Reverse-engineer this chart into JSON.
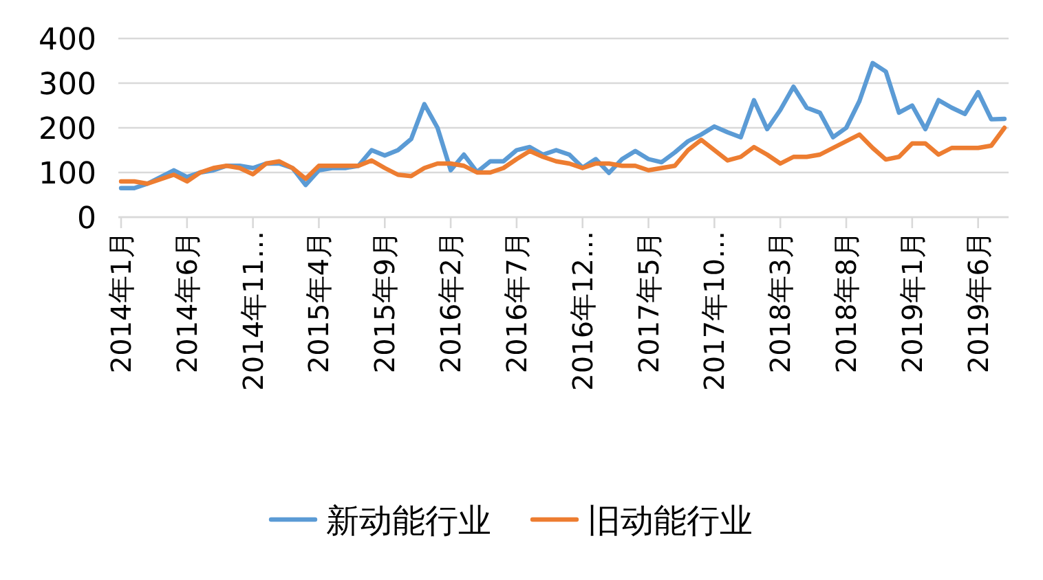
{
  "chart_data": {
    "type": "line",
    "categories": [
      "2014年1月",
      null,
      null,
      null,
      null,
      "2014年6月",
      null,
      null,
      null,
      null,
      "2014年11…",
      null,
      null,
      null,
      null,
      "2015年4月",
      null,
      null,
      null,
      null,
      "2015年9月",
      null,
      null,
      null,
      null,
      "2016年2月",
      null,
      null,
      null,
      null,
      "2016年7月",
      null,
      null,
      null,
      null,
      "2016年12…",
      null,
      null,
      null,
      null,
      "2017年5月",
      null,
      null,
      null,
      null,
      "2017年10…",
      null,
      null,
      null,
      null,
      "2018年3月",
      null,
      null,
      null,
      null,
      "2018年8月",
      null,
      null,
      null,
      null,
      "2019年1月",
      null,
      null,
      null,
      null,
      "2019年6月",
      null,
      null
    ],
    "series": [
      {
        "name": "新动能行业",
        "color": "#5b9bd5",
        "values": [
          65,
          65,
          75,
          90,
          105,
          90,
          100,
          105,
          115,
          115,
          110,
          120,
          120,
          110,
          72,
          105,
          110,
          110,
          115,
          150,
          138,
          150,
          175,
          253,
          200,
          105,
          140,
          101,
          125,
          125,
          150,
          157,
          140,
          150,
          140,
          111,
          130,
          99,
          130,
          148,
          130,
          123,
          145,
          170,
          185,
          203,
          190,
          179,
          262,
          197,
          240,
          292,
          245,
          234,
          179,
          200,
          260,
          345,
          326,
          234,
          250,
          197,
          262,
          245,
          231,
          280,
          219,
          220
        ]
      },
      {
        "name": "旧动能行业",
        "color": "#ed7d31",
        "values": [
          80,
          80,
          75,
          85,
          95,
          80,
          100,
          110,
          115,
          110,
          96,
          120,
          125,
          110,
          86,
          115,
          115,
          115,
          115,
          127,
          110,
          95,
          92,
          110,
          120,
          120,
          115,
          100,
          100,
          110,
          130,
          148,
          135,
          125,
          120,
          110,
          120,
          120,
          115,
          115,
          105,
          110,
          115,
          150,
          173,
          150,
          127,
          135,
          157,
          140,
          120,
          135,
          135,
          140,
          155,
          170,
          185,
          155,
          129,
          135,
          165,
          165,
          140,
          155,
          155,
          155,
          160,
          200
        ]
      }
    ],
    "ylim": [
      0,
      400
    ],
    "yticks": [
      0,
      100,
      200,
      300,
      400
    ],
    "grid": "y",
    "legend": "bottom",
    "marker": "none",
    "line_style": "solid"
  }
}
